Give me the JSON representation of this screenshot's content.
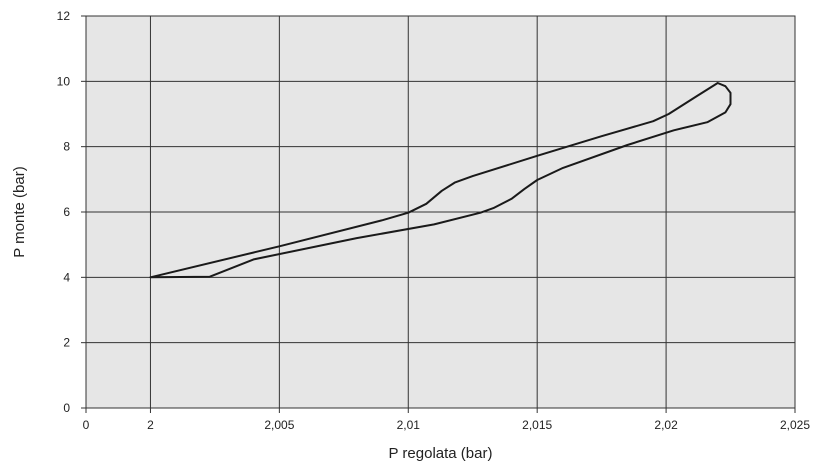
{
  "chart_data": {
    "type": "line",
    "xlabel": "P regolata (bar)",
    "ylabel": "P monte (bar)",
    "xlim": [
      1.9975,
      2.025
    ],
    "ylim": [
      0,
      12
    ],
    "x_ticks": [
      {
        "value": 1.9975,
        "label": "0"
      },
      {
        "value": 2.0,
        "label": "2"
      },
      {
        "value": 2.005,
        "label": "2,005"
      },
      {
        "value": 2.01,
        "label": "2,01"
      },
      {
        "value": 2.015,
        "label": "2,015"
      },
      {
        "value": 2.02,
        "label": "2,02"
      },
      {
        "value": 2.025,
        "label": "2,025"
      }
    ],
    "y_ticks": [
      {
        "value": 0,
        "label": "0"
      },
      {
        "value": 2,
        "label": "2"
      },
      {
        "value": 4,
        "label": "4"
      },
      {
        "value": 6,
        "label": "6"
      },
      {
        "value": 8,
        "label": "8"
      },
      {
        "value": 10,
        "label": "10"
      },
      {
        "value": 12,
        "label": "12"
      }
    ],
    "grid": true,
    "background_color": "#e6e6e6",
    "line_color": "#1a1a1a",
    "series": [
      {
        "x": [
          2.0,
          2.005,
          2.009,
          2.01,
          2.0107,
          2.0113,
          2.0118,
          2.0125,
          2.015,
          2.0175,
          2.0195,
          2.0201,
          2.0212,
          2.022,
          2.0223,
          2.0225,
          2.0225,
          2.0223,
          2.0216,
          2.0203,
          2.0185,
          2.016,
          2.015,
          2.0145,
          2.014,
          2.0133,
          2.0128,
          2.011,
          2.008,
          2.004,
          2.0023,
          2.0
        ],
        "y": [
          4.0,
          4.95,
          5.75,
          5.98,
          6.25,
          6.65,
          6.9,
          7.1,
          7.72,
          8.32,
          8.78,
          9.0,
          9.55,
          9.95,
          9.85,
          9.65,
          9.3,
          9.05,
          8.75,
          8.5,
          8.05,
          7.35,
          6.98,
          6.7,
          6.4,
          6.12,
          5.98,
          5.62,
          5.2,
          4.55,
          4.02,
          4.0
        ]
      }
    ]
  }
}
